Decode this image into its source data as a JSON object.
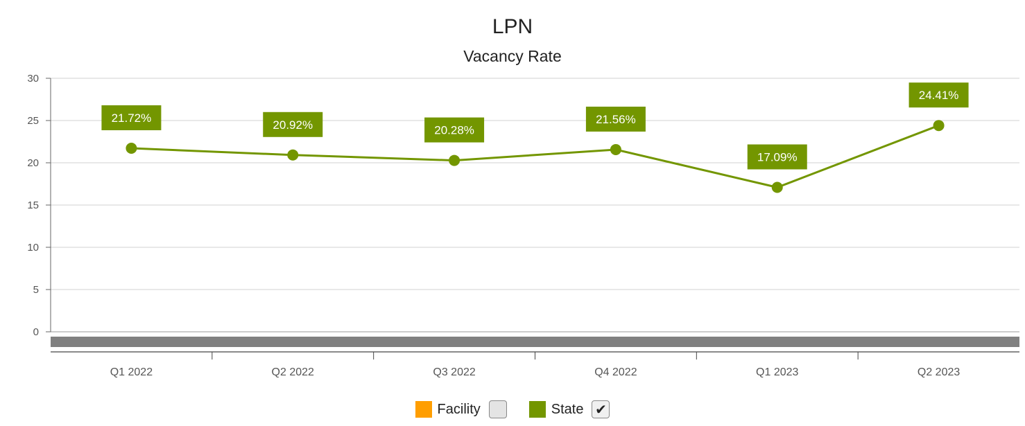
{
  "chart_data": {
    "type": "line",
    "title": "LPN",
    "subtitle": "Vacancy Rate",
    "categories": [
      "Q1 2022",
      "Q2 2022",
      "Q3 2022",
      "Q4 2022",
      "Q1 2023",
      "Q2 2023"
    ],
    "ylim": [
      0,
      30
    ],
    "yticks": [
      0,
      5,
      10,
      15,
      20,
      25,
      30
    ],
    "grid": true,
    "legend_position": "bottom",
    "series": [
      {
        "name": "State",
        "color": "#739600",
        "values": [
          21.72,
          20.92,
          20.28,
          21.56,
          17.09,
          24.41
        ],
        "data_labels": [
          "21.72%",
          "20.92%",
          "20.28%",
          "21.56%",
          "17.09%",
          "24.41%"
        ]
      }
    ]
  },
  "legend": {
    "items": [
      {
        "label": "Facility",
        "color": "#FF9E01",
        "checked": false,
        "check_glyph": ""
      },
      {
        "label": "State",
        "color": "#739600",
        "checked": true,
        "check_glyph": "✔"
      }
    ]
  }
}
